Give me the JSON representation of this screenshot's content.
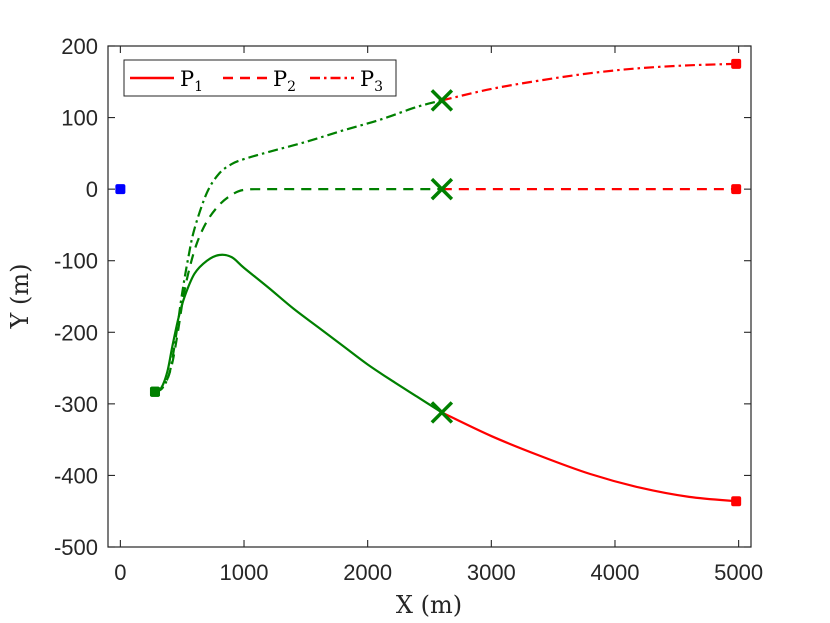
{
  "chart_data": {
    "type": "line",
    "xlabel": "X (m)",
    "ylabel": "Y (m)",
    "xlim": [
      -100,
      5100
    ],
    "ylim": [
      -500,
      200
    ],
    "xticks": [
      0,
      1000,
      2000,
      3000,
      4000,
      5000
    ],
    "yticks": [
      200,
      100,
      0,
      -100,
      -200,
      -300,
      -400,
      -500
    ],
    "grid": false,
    "legend": {
      "placement": "top-left",
      "entries": [
        {
          "base": "P",
          "sub": "1",
          "style": "solid"
        },
        {
          "base": "P",
          "sub": "2",
          "style": "dashed"
        },
        {
          "base": "P",
          "sub": "3",
          "style": "dashdot"
        }
      ]
    },
    "colors": {
      "pre_switch": "#008000",
      "post_switch": "#ff0000",
      "origin": "#0000ff",
      "axes": "#262626"
    },
    "origin_point": {
      "x": 0,
      "y": 0
    },
    "series": [
      {
        "name": "P1",
        "style": "solid",
        "start": {
          "x": 280,
          "y": -283
        },
        "switch_point": {
          "x": 2600,
          "y": -312
        },
        "end": {
          "x": 4980,
          "y": -436
        },
        "pre_switch_points": [
          [
            280,
            -283
          ],
          [
            330,
            -278
          ],
          [
            380,
            -255
          ],
          [
            420,
            -220
          ],
          [
            470,
            -180
          ],
          [
            520,
            -150
          ],
          [
            600,
            -118
          ],
          [
            700,
            -100
          ],
          [
            800,
            -92
          ],
          [
            900,
            -95
          ],
          [
            1000,
            -110
          ],
          [
            1200,
            -138
          ],
          [
            1400,
            -167
          ],
          [
            1600,
            -193
          ],
          [
            1800,
            -219
          ],
          [
            2000,
            -245
          ],
          [
            2200,
            -268
          ],
          [
            2400,
            -290
          ],
          [
            2600,
            -312
          ]
        ],
        "post_switch_points": [
          [
            2600,
            -312
          ],
          [
            3000,
            -345
          ],
          [
            3400,
            -373
          ],
          [
            3800,
            -398
          ],
          [
            4200,
            -417
          ],
          [
            4600,
            -430
          ],
          [
            4980,
            -436
          ]
        ]
      },
      {
        "name": "P2",
        "style": "dashed",
        "start": {
          "x": 280,
          "y": -283
        },
        "switch_point": {
          "x": 2600,
          "y": 0
        },
        "end": {
          "x": 4980,
          "y": 0
        },
        "pre_switch_points": [
          [
            280,
            -283
          ],
          [
            350,
            -275
          ],
          [
            410,
            -250
          ],
          [
            460,
            -205
          ],
          [
            510,
            -150
          ],
          [
            560,
            -110
          ],
          [
            620,
            -75
          ],
          [
            700,
            -45
          ],
          [
            800,
            -22
          ],
          [
            900,
            -8
          ],
          [
            1000,
            -1
          ],
          [
            1200,
            0
          ],
          [
            1600,
            0
          ],
          [
            2000,
            0
          ],
          [
            2600,
            0
          ]
        ],
        "post_switch_points": [
          [
            2600,
            0
          ],
          [
            3500,
            0
          ],
          [
            4200,
            0
          ],
          [
            4980,
            0
          ]
        ]
      },
      {
        "name": "P3",
        "style": "dashdot",
        "start": {
          "x": 280,
          "y": -283
        },
        "switch_point": {
          "x": 2600,
          "y": 124
        },
        "end": {
          "x": 4980,
          "y": 175
        },
        "pre_switch_points": [
          [
            280,
            -283
          ],
          [
            340,
            -278
          ],
          [
            400,
            -255
          ],
          [
            450,
            -205
          ],
          [
            500,
            -145
          ],
          [
            550,
            -95
          ],
          [
            600,
            -55
          ],
          [
            700,
            -5
          ],
          [
            800,
            22
          ],
          [
            900,
            35
          ],
          [
            1000,
            42
          ],
          [
            1200,
            52
          ],
          [
            1500,
            66
          ],
          [
            1800,
            82
          ],
          [
            2100,
            97
          ],
          [
            2400,
            115
          ],
          [
            2600,
            124
          ]
        ],
        "post_switch_points": [
          [
            2600,
            124
          ],
          [
            3000,
            140
          ],
          [
            3400,
            152
          ],
          [
            3800,
            162
          ],
          [
            4200,
            169
          ],
          [
            4600,
            173
          ],
          [
            4980,
            175
          ]
        ]
      }
    ]
  }
}
